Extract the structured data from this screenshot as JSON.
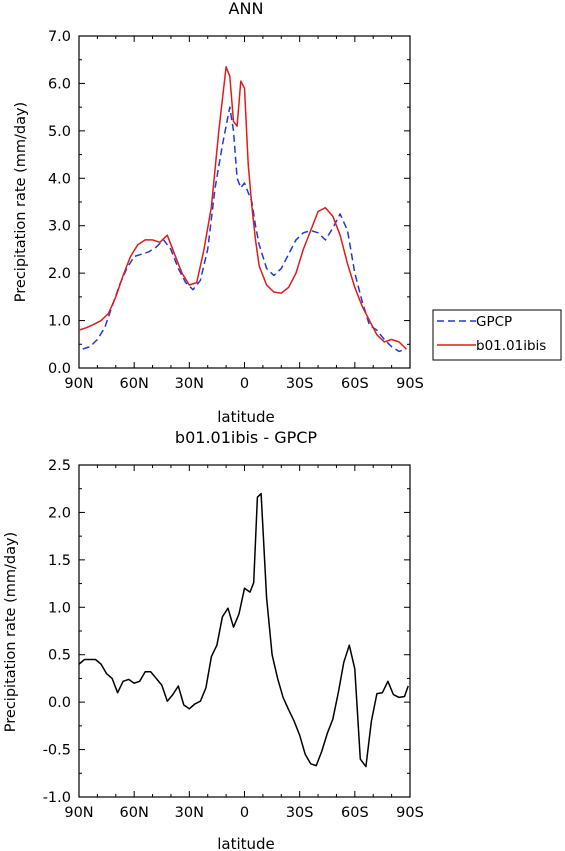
{
  "chart_data": [
    {
      "type": "line",
      "title": "ANN",
      "xlabel": "latitude",
      "ylabel": "Precipitation rate (mm/day)",
      "x_ticks": [
        "90N",
        "60N",
        "30N",
        "0",
        "30S",
        "60S",
        "90S"
      ],
      "y_ticks": [
        "0.0",
        "1.0",
        "2.0",
        "3.0",
        "4.0",
        "5.0",
        "6.0",
        "7.0"
      ],
      "xlim": [
        90,
        -90
      ],
      "ylim": [
        0,
        7
      ],
      "legend_position": "right",
      "series": [
        {
          "name": "GPCP",
          "color": "#1f3ad6",
          "dash": "dashed",
          "x": [
            88,
            84,
            80,
            76,
            72,
            68,
            64,
            60,
            56,
            52,
            48,
            44,
            40,
            36,
            32,
            28,
            24,
            20,
            16,
            12,
            8,
            6,
            4,
            2,
            0,
            -2,
            -4,
            -6,
            -8,
            -12,
            -16,
            -20,
            -24,
            -28,
            -32,
            -36,
            -40,
            -44,
            -48,
            -52,
            -56,
            -60,
            -64,
            -68,
            -72,
            -76,
            -80,
            -84,
            -88
          ],
          "y": [
            0.4,
            0.45,
            0.6,
            0.85,
            1.3,
            1.75,
            2.1,
            2.35,
            2.4,
            2.45,
            2.55,
            2.7,
            2.5,
            2.1,
            1.8,
            1.65,
            1.85,
            2.5,
            3.8,
            4.7,
            5.5,
            5.0,
            4.0,
            3.8,
            3.9,
            3.7,
            3.5,
            3.0,
            2.6,
            2.1,
            1.95,
            2.1,
            2.4,
            2.7,
            2.85,
            2.9,
            2.85,
            2.7,
            2.95,
            3.25,
            2.9,
            2.0,
            1.4,
            0.9,
            0.8,
            0.6,
            0.45,
            0.35,
            0.4
          ]
        },
        {
          "name": "b01.01ibis",
          "color": "#e01b1b",
          "dash": "solid",
          "x": [
            90,
            86,
            82,
            78,
            74,
            70,
            66,
            62,
            58,
            54,
            50,
            46,
            42,
            38,
            34,
            30,
            26,
            22,
            18,
            14,
            10,
            8,
            6,
            4,
            2,
            0,
            -2,
            -4,
            -6,
            -8,
            -12,
            -16,
            -20,
            -24,
            -28,
            -32,
            -36,
            -40,
            -44,
            -48,
            -52,
            -56,
            -60,
            -64,
            -68,
            -72,
            -76,
            -80,
            -84,
            -88
          ],
          "y": [
            0.8,
            0.85,
            0.92,
            1.0,
            1.15,
            1.5,
            1.95,
            2.35,
            2.6,
            2.7,
            2.7,
            2.65,
            2.8,
            2.4,
            2.0,
            1.75,
            1.8,
            2.5,
            3.4,
            5.0,
            6.35,
            6.15,
            5.2,
            5.1,
            6.05,
            5.9,
            4.3,
            3.4,
            2.7,
            2.15,
            1.75,
            1.6,
            1.58,
            1.7,
            2.0,
            2.5,
            2.9,
            3.3,
            3.38,
            3.2,
            2.8,
            2.2,
            1.7,
            1.3,
            1.0,
            0.7,
            0.55,
            0.6,
            0.55,
            0.4
          ]
        }
      ]
    },
    {
      "type": "line",
      "title": "b01.01ibis - GPCP",
      "xlabel": "latitude",
      "ylabel": "Precipitation rate (mm/day)",
      "x_ticks": [
        "90N",
        "60N",
        "30N",
        "0",
        "30S",
        "60S",
        "90S"
      ],
      "y_ticks": [
        "2.5",
        "2.0",
        "1.5",
        "1.0",
        "0.5",
        "0.0",
        "-0.5",
        "-1.0"
      ],
      "xlim": [
        90,
        -90
      ],
      "ylim": [
        -1.0,
        2.5
      ],
      "series": [
        {
          "color": "#000000",
          "dash": "solid",
          "x": [
            90,
            87,
            84,
            81,
            78,
            75,
            72,
            69,
            66,
            63,
            60,
            57,
            54,
            51,
            48,
            45,
            42,
            39,
            36,
            33,
            30,
            27,
            24,
            21,
            18,
            15,
            12,
            9,
            6,
            3,
            0,
            -3,
            -5,
            -7,
            -9,
            -12,
            -15,
            -18,
            -21,
            -24,
            -27,
            -30,
            -33,
            -36,
            -39,
            -42,
            -45,
            -48,
            -51,
            -54,
            -57,
            -60,
            -63,
            -66,
            -69,
            -72,
            -75,
            -78,
            -81,
            -84,
            -87,
            -89
          ],
          "y": [
            0.4,
            0.45,
            0.45,
            0.45,
            0.4,
            0.3,
            0.25,
            0.1,
            0.22,
            0.24,
            0.2,
            0.22,
            0.32,
            0.32,
            0.25,
            0.18,
            0.01,
            0.08,
            0.17,
            -0.03,
            -0.07,
            -0.02,
            0.01,
            0.15,
            0.48,
            0.6,
            0.9,
            0.99,
            0.79,
            0.93,
            1.2,
            1.16,
            1.26,
            2.16,
            2.2,
            1.1,
            0.5,
            0.25,
            0.05,
            -0.08,
            -0.2,
            -0.35,
            -0.55,
            -0.65,
            -0.67,
            -0.52,
            -0.33,
            -0.18,
            0.1,
            0.42,
            0.6,
            0.35,
            -0.6,
            -0.68,
            -0.2,
            0.09,
            0.1,
            0.22,
            0.08,
            0.05,
            0.06,
            0.17
          ]
        }
      ]
    }
  ]
}
